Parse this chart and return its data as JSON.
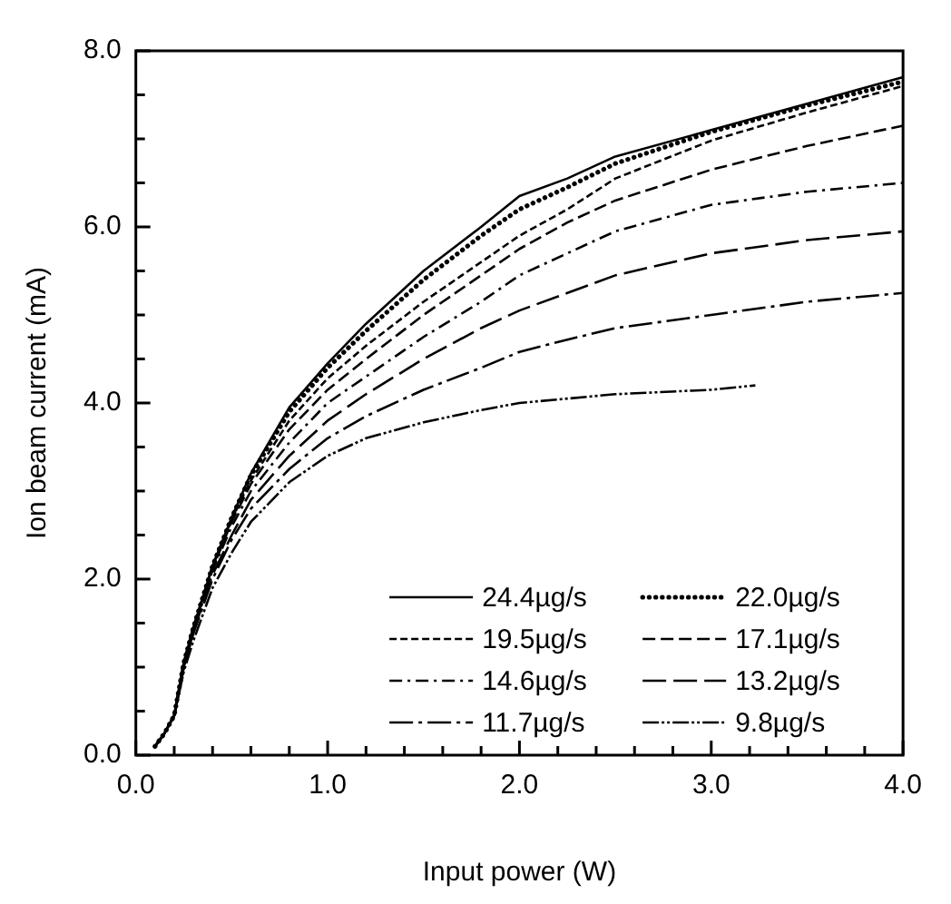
{
  "chart_data": {
    "type": "line",
    "xlabel": "Input power (W)",
    "ylabel": "Ion beam current (mA)",
    "xlim": [
      0,
      4
    ],
    "ylim": [
      0,
      8
    ],
    "xticks": [
      {
        "value": 0,
        "label": "0.0"
      },
      {
        "value": 0.2,
        "label": null
      },
      {
        "value": 0.4,
        "label": null
      },
      {
        "value": 0.6,
        "label": null
      },
      {
        "value": 0.8,
        "label": null
      },
      {
        "value": 1,
        "label": "1.0"
      },
      {
        "value": 1.2,
        "label": null
      },
      {
        "value": 1.4,
        "label": null
      },
      {
        "value": 1.6,
        "label": null
      },
      {
        "value": 1.8,
        "label": null
      },
      {
        "value": 2,
        "label": "2.0"
      },
      {
        "value": 2.2,
        "label": null
      },
      {
        "value": 2.4,
        "label": null
      },
      {
        "value": 2.6,
        "label": null
      },
      {
        "value": 2.8,
        "label": null
      },
      {
        "value": 3,
        "label": "3.0"
      },
      {
        "value": 3.2,
        "label": null
      },
      {
        "value": 3.4,
        "label": null
      },
      {
        "value": 3.6,
        "label": null
      },
      {
        "value": 3.8,
        "label": null
      },
      {
        "value": 4,
        "label": "4.0"
      }
    ],
    "yticks": [
      {
        "value": 0,
        "label": "0.0"
      },
      {
        "value": 0.5,
        "label": null
      },
      {
        "value": 1,
        "label": null
      },
      {
        "value": 1.5,
        "label": null
      },
      {
        "value": 2,
        "label": "2.0"
      },
      {
        "value": 2.5,
        "label": null
      },
      {
        "value": 3,
        "label": null
      },
      {
        "value": 3.5,
        "label": null
      },
      {
        "value": 4,
        "label": "4.0"
      },
      {
        "value": 4.5,
        "label": null
      },
      {
        "value": 5,
        "label": null
      },
      {
        "value": 5.5,
        "label": null
      },
      {
        "value": 6,
        "label": "6.0"
      },
      {
        "value": 6.5,
        "label": null
      },
      {
        "value": 7,
        "label": null
      },
      {
        "value": 7.5,
        "label": null
      },
      {
        "value": 8,
        "label": "8.0"
      }
    ],
    "grid": false,
    "legend": "bottom right",
    "marker": "none",
    "series": [
      {
        "name": "24.4µg/s",
        "color": "#000000",
        "line_style": "solid",
        "x": [
          0.1,
          0.15,
          0.2,
          0.25,
          0.3,
          0.4,
          0.5,
          0.6,
          0.8,
          1.0,
          1.2,
          1.5,
          1.8,
          2.0,
          2.25,
          2.5,
          3.0,
          3.5,
          4.0
        ],
        "values": [
          0.1,
          0.25,
          0.45,
          1.05,
          1.45,
          2.15,
          2.7,
          3.2,
          3.95,
          4.45,
          4.9,
          5.5,
          6.0,
          6.35,
          6.55,
          6.8,
          7.1,
          7.4,
          7.7
        ]
      },
      {
        "name": "22.0µg/s",
        "color": "#000000",
        "line_style": "dotted",
        "x": [
          0.1,
          0.15,
          0.2,
          0.25,
          0.3,
          0.4,
          0.5,
          0.6,
          0.8,
          1.0,
          1.2,
          1.5,
          1.8,
          2.0,
          2.25,
          2.5,
          3.0,
          3.5,
          4.0
        ],
        "values": [
          0.1,
          0.25,
          0.45,
          1.05,
          1.45,
          2.15,
          2.7,
          3.18,
          3.9,
          4.4,
          4.82,
          5.4,
          5.9,
          6.2,
          6.45,
          6.72,
          7.08,
          7.38,
          7.65
        ]
      },
      {
        "name": "19.5µg/s",
        "color": "#000000",
        "line_style": "dashed",
        "x": [
          0.1,
          0.15,
          0.2,
          0.25,
          0.3,
          0.4,
          0.5,
          0.6,
          0.8,
          1.0,
          1.2,
          1.5,
          1.8,
          2.0,
          2.25,
          2.5,
          3.0,
          3.5,
          4.0
        ],
        "values": [
          0.1,
          0.25,
          0.45,
          1.05,
          1.45,
          2.15,
          2.68,
          3.12,
          3.8,
          4.28,
          4.65,
          5.15,
          5.6,
          5.9,
          6.2,
          6.55,
          6.98,
          7.3,
          7.6
        ]
      },
      {
        "name": "17.1µg/s",
        "color": "#000000",
        "line_style": "dashed",
        "x": [
          0.1,
          0.15,
          0.2,
          0.25,
          0.3,
          0.4,
          0.5,
          0.6,
          0.8,
          1.0,
          1.2,
          1.5,
          1.8,
          2.0,
          2.25,
          2.5,
          3.0,
          3.5,
          4.0
        ],
        "values": [
          0.1,
          0.25,
          0.45,
          1.05,
          1.45,
          2.12,
          2.65,
          3.08,
          3.7,
          4.15,
          4.5,
          5.0,
          5.45,
          5.75,
          6.05,
          6.3,
          6.65,
          6.92,
          7.15
        ]
      },
      {
        "name": "14.6µg/s",
        "color": "#000000",
        "line_style": "dashed",
        "x": [
          0.1,
          0.15,
          0.2,
          0.25,
          0.3,
          0.4,
          0.5,
          0.6,
          0.8,
          1.0,
          1.2,
          1.5,
          1.8,
          2.0,
          2.25,
          2.5,
          3.0,
          3.5,
          4.0
        ],
        "values": [
          0.1,
          0.25,
          0.45,
          1.05,
          1.42,
          2.1,
          2.6,
          3.0,
          3.55,
          4.0,
          4.3,
          4.75,
          5.15,
          5.45,
          5.7,
          5.95,
          6.25,
          6.4,
          6.5
        ]
      },
      {
        "name": "13.2µg/s",
        "color": "#000000",
        "line_style": "dashed",
        "x": [
          0.1,
          0.15,
          0.2,
          0.25,
          0.3,
          0.4,
          0.5,
          0.6,
          0.8,
          1.0,
          1.2,
          1.5,
          1.8,
          2.0,
          2.25,
          2.5,
          3.0,
          3.5,
          4.0
        ],
        "values": [
          0.1,
          0.25,
          0.45,
          1.0,
          1.4,
          2.05,
          2.5,
          2.9,
          3.4,
          3.8,
          4.1,
          4.5,
          4.85,
          5.05,
          5.25,
          5.45,
          5.7,
          5.85,
          5.95
        ]
      },
      {
        "name": "11.7µg/s",
        "color": "#000000",
        "line_style": "dashed",
        "x": [
          0.1,
          0.15,
          0.2,
          0.25,
          0.3,
          0.4,
          0.5,
          0.6,
          0.8,
          1.0,
          1.2,
          1.5,
          1.8,
          2.0,
          2.25,
          2.5,
          3.0,
          3.5,
          4.0
        ],
        "values": [
          0.1,
          0.25,
          0.45,
          1.0,
          1.38,
          2.0,
          2.45,
          2.8,
          3.25,
          3.6,
          3.85,
          4.15,
          4.4,
          4.58,
          4.72,
          4.85,
          5.0,
          5.15,
          5.25
        ]
      },
      {
        "name": "9.8µg/s",
        "color": "#000000",
        "line_style": "dashed",
        "x": [
          0.1,
          0.15,
          0.2,
          0.25,
          0.3,
          0.4,
          0.5,
          0.6,
          0.8,
          1.0,
          1.2,
          1.5,
          1.8,
          2.0,
          2.25,
          2.5,
          3.0,
          3.23
        ],
        "values": [
          0.1,
          0.25,
          0.45,
          0.95,
          1.3,
          1.9,
          2.3,
          2.65,
          3.1,
          3.4,
          3.6,
          3.78,
          3.92,
          4.0,
          4.05,
          4.1,
          4.15,
          4.2
        ]
      }
    ]
  }
}
